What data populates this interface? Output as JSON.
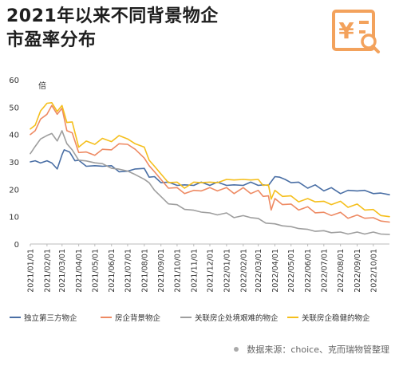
{
  "header": {
    "title_line1": "2021年以来不同背景物企",
    "title_line2": "市盈率分布"
  },
  "logo": {
    "icon": "yuan-document-search-icon",
    "color": "#f3a25c"
  },
  "footer": {
    "source": "数据来源：choice、克而瑞物管整理"
  },
  "chart_data": {
    "type": "line",
    "title": "",
    "ylabel": "倍",
    "xlabel": "",
    "ylim": [
      0,
      60
    ],
    "yticks": [
      0,
      10,
      20,
      30,
      40,
      50,
      60
    ],
    "grid": false,
    "legend_position": "bottom",
    "x": [
      "2021/01/01",
      "2021/02/01",
      "2021/03/01",
      "2021/04/01",
      "2021/05/01",
      "2021/06/01",
      "2021/07/01",
      "2021/08/01",
      "2021/09/01",
      "2021/10/01",
      "2021/11/01",
      "2021/12/01",
      "2022/01/01",
      "2022/02/01",
      "2022/03/01",
      "2022/04/01",
      "2022/05/01",
      "2022/06/01",
      "2022/07/01",
      "2022/08/01",
      "2022/09/01",
      "2022/10/01"
    ],
    "x_end": "2022/10/31",
    "series": [
      {
        "name": "独立第三方物企",
        "color": "#4a6fa5",
        "points": [
          [
            "2021/01/01",
            30
          ],
          [
            "2021/01/10",
            31
          ],
          [
            "2021/01/20",
            29
          ],
          [
            "2021/02/01",
            31
          ],
          [
            "2021/02/10",
            29
          ],
          [
            "2021/02/20",
            28
          ],
          [
            "2021/03/01",
            32
          ],
          [
            "2021/03/05",
            35
          ],
          [
            "2021/03/15",
            33
          ],
          [
            "2021/03/25",
            31
          ],
          [
            "2021/04/01",
            30
          ],
          [
            "2021/04/15",
            29
          ],
          [
            "2021/05/01",
            28
          ],
          [
            "2021/05/15",
            29
          ],
          [
            "2021/06/01",
            28
          ],
          [
            "2021/06/15",
            27
          ],
          [
            "2021/07/01",
            26
          ],
          [
            "2021/07/15",
            28
          ],
          [
            "2021/08/01",
            27
          ],
          [
            "2021/08/10",
            25
          ],
          [
            "2021/08/20",
            24
          ],
          [
            "2021/09/01",
            23
          ],
          [
            "2021/09/15",
            22
          ],
          [
            "2021/10/01",
            22
          ],
          [
            "2021/10/15",
            21
          ],
          [
            "2021/11/01",
            22
          ],
          [
            "2021/11/15",
            22
          ],
          [
            "2021/12/01",
            22
          ],
          [
            "2021/12/15",
            22
          ],
          [
            "2022/01/01",
            22
          ],
          [
            "2022/01/15",
            21
          ],
          [
            "2022/02/01",
            22
          ],
          [
            "2022/02/15",
            22
          ],
          [
            "2022/03/01",
            22
          ],
          [
            "2022/03/10",
            21
          ],
          [
            "2022/03/20",
            22
          ],
          [
            "2022/04/01",
            24
          ],
          [
            "2022/04/10",
            25
          ],
          [
            "2022/04/20",
            23
          ],
          [
            "2022/05/01",
            23
          ],
          [
            "2022/05/15",
            22
          ],
          [
            "2022/06/01",
            21
          ],
          [
            "2022/06/15",
            21
          ],
          [
            "2022/07/01",
            20
          ],
          [
            "2022/07/15",
            20
          ],
          [
            "2022/08/01",
            19
          ],
          [
            "2022/08/15",
            19
          ],
          [
            "2022/09/01",
            20
          ],
          [
            "2022/09/15",
            19
          ],
          [
            "2022/10/01",
            19
          ],
          [
            "2022/10/15",
            18
          ],
          [
            "2022/10/31",
            18
          ]
        ]
      },
      {
        "name": "房企背景物企",
        "color": "#ee8a63",
        "points": [
          [
            "2021/01/01",
            40
          ],
          [
            "2021/01/10",
            42
          ],
          [
            "2021/01/20",
            45
          ],
          [
            "2021/02/01",
            48
          ],
          [
            "2021/02/10",
            50
          ],
          [
            "2021/02/20",
            48
          ],
          [
            "2021/03/01",
            49
          ],
          [
            "2021/03/10",
            42
          ],
          [
            "2021/03/20",
            40
          ],
          [
            "2021/04/01",
            34
          ],
          [
            "2021/04/15",
            33
          ],
          [
            "2021/05/01",
            33
          ],
          [
            "2021/05/15",
            34
          ],
          [
            "2021/06/01",
            35
          ],
          [
            "2021/06/15",
            36
          ],
          [
            "2021/07/01",
            37
          ],
          [
            "2021/07/15",
            34
          ],
          [
            "2021/08/01",
            32
          ],
          [
            "2021/08/10",
            28
          ],
          [
            "2021/08/20",
            27
          ],
          [
            "2021/09/01",
            23
          ],
          [
            "2021/09/15",
            21
          ],
          [
            "2021/10/01",
            20
          ],
          [
            "2021/10/15",
            19
          ],
          [
            "2021/11/01",
            19
          ],
          [
            "2021/11/15",
            20
          ],
          [
            "2021/12/01",
            20
          ],
          [
            "2021/12/15",
            20
          ],
          [
            "2022/01/01",
            20
          ],
          [
            "2022/01/15",
            19
          ],
          [
            "2022/02/01",
            20
          ],
          [
            "2022/02/15",
            19
          ],
          [
            "2022/03/01",
            19
          ],
          [
            "2022/03/10",
            18
          ],
          [
            "2022/03/20",
            17
          ],
          [
            "2022/03/25",
            13
          ],
          [
            "2022/04/01",
            16
          ],
          [
            "2022/04/15",
            15
          ],
          [
            "2022/05/01",
            14
          ],
          [
            "2022/05/15",
            13
          ],
          [
            "2022/06/01",
            13
          ],
          [
            "2022/06/15",
            12
          ],
          [
            "2022/07/01",
            11
          ],
          [
            "2022/07/15",
            11
          ],
          [
            "2022/08/01",
            11
          ],
          [
            "2022/08/15",
            10
          ],
          [
            "2022/09/01",
            10
          ],
          [
            "2022/09/15",
            10
          ],
          [
            "2022/10/01",
            9
          ],
          [
            "2022/10/15",
            9
          ],
          [
            "2022/10/31",
            8
          ]
        ]
      },
      {
        "name": "关联房企处境艰难的物企",
        "color": "#9e9e9e",
        "points": [
          [
            "2021/01/01",
            33
          ],
          [
            "2021/01/10",
            36
          ],
          [
            "2021/01/20",
            38
          ],
          [
            "2021/02/01",
            40
          ],
          [
            "2021/02/10",
            40
          ],
          [
            "2021/02/20",
            38
          ],
          [
            "2021/03/01",
            41
          ],
          [
            "2021/03/10",
            37
          ],
          [
            "2021/03/20",
            34
          ],
          [
            "2021/04/01",
            31
          ],
          [
            "2021/04/15",
            30
          ],
          [
            "2021/05/01",
            30
          ],
          [
            "2021/05/15",
            29
          ],
          [
            "2021/06/01",
            28
          ],
          [
            "2021/06/15",
            27
          ],
          [
            "2021/07/01",
            27
          ],
          [
            "2021/07/15",
            25
          ],
          [
            "2021/08/01",
            24
          ],
          [
            "2021/08/10",
            22
          ],
          [
            "2021/08/20",
            20
          ],
          [
            "2021/09/01",
            17
          ],
          [
            "2021/09/15",
            15
          ],
          [
            "2021/10/01",
            14
          ],
          [
            "2021/10/15",
            13
          ],
          [
            "2021/11/01",
            12
          ],
          [
            "2021/11/15",
            12
          ],
          [
            "2021/12/01",
            11
          ],
          [
            "2021/12/15",
            11
          ],
          [
            "2022/01/01",
            11
          ],
          [
            "2022/01/15",
            10
          ],
          [
            "2022/02/01",
            10
          ],
          [
            "2022/02/15",
            10
          ],
          [
            "2022/03/01",
            9
          ],
          [
            "2022/03/15",
            8
          ],
          [
            "2022/04/01",
            7
          ],
          [
            "2022/04/15",
            7
          ],
          [
            "2022/05/01",
            6
          ],
          [
            "2022/05/15",
            6
          ],
          [
            "2022/06/01",
            5
          ],
          [
            "2022/06/15",
            5
          ],
          [
            "2022/07/01",
            4.5
          ],
          [
            "2022/07/15",
            4.5
          ],
          [
            "2022/08/01",
            4
          ],
          [
            "2022/08/15",
            4
          ],
          [
            "2022/09/01",
            4
          ],
          [
            "2022/09/15",
            4
          ],
          [
            "2022/10/01",
            4
          ],
          [
            "2022/10/15",
            4
          ],
          [
            "2022/10/31",
            3.5
          ]
        ]
      },
      {
        "name": "关联房企稳健的物企",
        "color": "#f5bf1c",
        "points": [
          [
            "2021/01/01",
            42
          ],
          [
            "2021/01/10",
            44
          ],
          [
            "2021/01/20",
            48
          ],
          [
            "2021/02/01",
            52
          ],
          [
            "2021/02/10",
            51
          ],
          [
            "2021/02/20",
            49
          ],
          [
            "2021/03/01",
            50
          ],
          [
            "2021/03/10",
            45
          ],
          [
            "2021/03/20",
            44
          ],
          [
            "2021/04/01",
            36
          ],
          [
            "2021/04/15",
            37
          ],
          [
            "2021/05/01",
            37
          ],
          [
            "2021/05/15",
            38
          ],
          [
            "2021/06/01",
            38
          ],
          [
            "2021/06/15",
            39
          ],
          [
            "2021/07/01",
            39
          ],
          [
            "2021/07/15",
            36
          ],
          [
            "2021/08/01",
            36
          ],
          [
            "2021/08/10",
            30
          ],
          [
            "2021/08/20",
            29
          ],
          [
            "2021/09/01",
            25
          ],
          [
            "2021/09/15",
            23
          ],
          [
            "2021/10/01",
            22
          ],
          [
            "2021/10/15",
            21
          ],
          [
            "2021/11/01",
            22
          ],
          [
            "2021/11/15",
            23
          ],
          [
            "2021/12/01",
            22
          ],
          [
            "2021/12/15",
            23
          ],
          [
            "2022/01/01",
            23
          ],
          [
            "2022/01/15",
            24
          ],
          [
            "2022/02/01",
            23
          ],
          [
            "2022/02/15",
            24
          ],
          [
            "2022/03/01",
            23
          ],
          [
            "2022/03/10",
            22
          ],
          [
            "2022/03/20",
            21
          ],
          [
            "2022/03/25",
            17
          ],
          [
            "2022/04/01",
            19
          ],
          [
            "2022/04/15",
            18
          ],
          [
            "2022/05/01",
            17
          ],
          [
            "2022/05/15",
            16
          ],
          [
            "2022/06/01",
            16
          ],
          [
            "2022/06/15",
            16
          ],
          [
            "2022/07/01",
            15
          ],
          [
            "2022/07/15",
            15
          ],
          [
            "2022/08/01",
            15
          ],
          [
            "2022/08/15",
            14
          ],
          [
            "2022/09/01",
            14
          ],
          [
            "2022/09/15",
            13
          ],
          [
            "2022/10/01",
            12
          ],
          [
            "2022/10/15",
            11
          ],
          [
            "2022/10/31",
            10
          ]
        ]
      }
    ]
  }
}
